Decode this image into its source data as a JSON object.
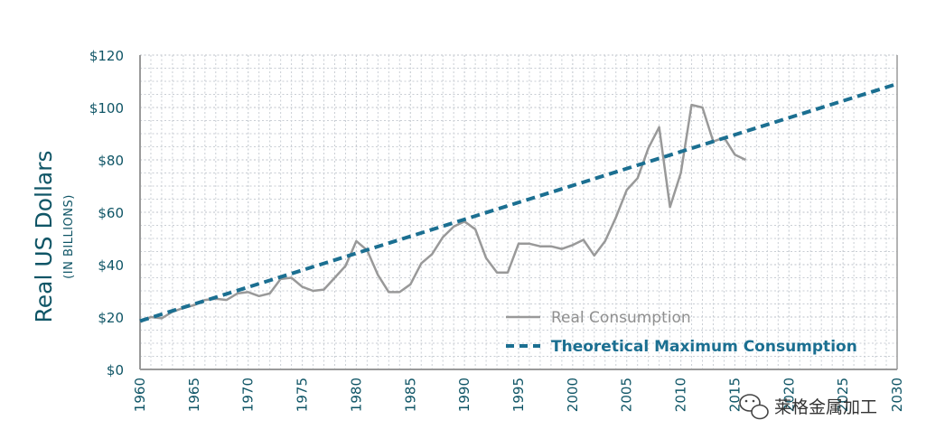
{
  "chart_data": {
    "type": "line",
    "ylabel": "Real US Dollars",
    "ylabel_sub": "(IN BILLIONS)",
    "xlim": [
      1960,
      2030
    ],
    "ylim": [
      0,
      120
    ],
    "x_ticks": [
      1960,
      1965,
      1970,
      1975,
      1980,
      1985,
      1990,
      1995,
      2000,
      2005,
      2010,
      2015,
      2020,
      2025,
      2030
    ],
    "y_ticks": [
      {
        "value": 0,
        "label": "$0"
      },
      {
        "value": 20,
        "label": "$20"
      },
      {
        "value": 40,
        "label": "$40"
      },
      {
        "value": 60,
        "label": "$60"
      },
      {
        "value": 80,
        "label": "$80"
      },
      {
        "value": 100,
        "label": "$100"
      },
      {
        "value": 120,
        "label": "$120"
      }
    ],
    "grid": true,
    "legend_position": "bottom-right",
    "series": [
      {
        "name": "Real Consumption",
        "color": "#999999",
        "style": "solid",
        "x": [
          1960,
          1961,
          1962,
          1963,
          1964,
          1965,
          1966,
          1967,
          1968,
          1969,
          1970,
          1971,
          1972,
          1973,
          1974,
          1975,
          1976,
          1977,
          1978,
          1979,
          1980,
          1981,
          1982,
          1983,
          1984,
          1985,
          1986,
          1987,
          1988,
          1989,
          1990,
          1991,
          1992,
          1993,
          1994,
          1995,
          1996,
          1997,
          1998,
          1999,
          2000,
          2001,
          2002,
          2003,
          2004,
          2005,
          2006,
          2007,
          2008,
          2009,
          2010,
          2011,
          2012,
          2013,
          2014,
          2015,
          2016
        ],
        "values": [
          18,
          20,
          19.5,
          22,
          23.5,
          24.5,
          26.5,
          27,
          26.5,
          29,
          29.5,
          28,
          29,
          34.5,
          35,
          31.5,
          30,
          30.5,
          35,
          39.5,
          49,
          45.5,
          36,
          29.5,
          29.5,
          32.5,
          40.5,
          44,
          50.5,
          54.5,
          56.5,
          53.5,
          42.5,
          37,
          37,
          48,
          48,
          47,
          47,
          46,
          47.5,
          49.5,
          43.5,
          49,
          58,
          68.5,
          73,
          84.5,
          92.5,
          62,
          75,
          101,
          100,
          87,
          88.5,
          82,
          80
        ]
      },
      {
        "name": "Theoretical Maximum Consumption",
        "color": "#1b6f91",
        "style": "dashed",
        "x": [
          1960,
          2030
        ],
        "values": [
          18.5,
          109
        ]
      }
    ]
  },
  "legend": {
    "real": "Real Consumption",
    "theoretical": "Theoretical Maximum Consumption"
  },
  "watermark": "莱格金属加工",
  "colors": {
    "axis_text": "#0f5566",
    "grid": "#c9ced4",
    "axis_line": "#9a9a9a"
  }
}
